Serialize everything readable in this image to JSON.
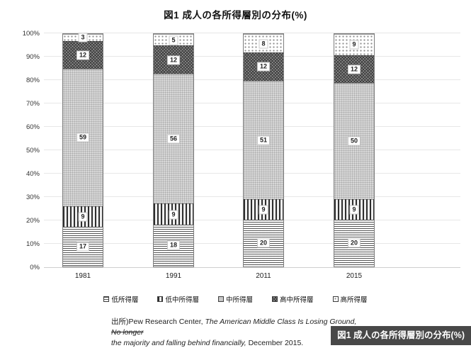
{
  "title": "図1 成人の各所得層別の分布(%)",
  "chart_data": {
    "type": "bar",
    "stacked": true,
    "percent_stacked": true,
    "title": "図1 成人の各所得層別の分布(%)",
    "categories": [
      "1981",
      "1991",
      "2011",
      "2015"
    ],
    "series": [
      {
        "name": "低所得層",
        "slug": "low-income",
        "pattern": "h-lines",
        "values": [
          17,
          18,
          20,
          20
        ]
      },
      {
        "name": "低中所得層",
        "slug": "lower-middle-income",
        "pattern": "v-lines",
        "values": [
          9,
          9,
          9,
          9
        ]
      },
      {
        "name": "中所得層",
        "slug": "middle-income",
        "pattern": "fine-check",
        "values": [
          59,
          56,
          51,
          50
        ]
      },
      {
        "name": "高中所得層",
        "slug": "upper-middle-income",
        "pattern": "cross-hatch",
        "values": [
          12,
          12,
          12,
          12
        ]
      },
      {
        "name": "高所得層",
        "slug": "high-income",
        "pattern": "sparse-dots",
        "values": [
          3,
          5,
          8,
          9
        ]
      }
    ],
    "y_axis": {
      "min": 0,
      "max": 100,
      "ticks": [
        "0%",
        "10%",
        "20%",
        "30%",
        "40%",
        "50%",
        "60%",
        "70%",
        "80%",
        "90%",
        "100%"
      ],
      "grid": true
    },
    "legend_position": "bottom",
    "colors": {
      "gridline": "#e7e7e7",
      "bar_border": "#7d7d7d",
      "label_box_bg": "#ffffff"
    }
  },
  "source": {
    "prefix": "出所)Pew Research Center,",
    "title_italic_line1": "The American Middle Class Is Losing Ground,",
    "title_struck": "No longer",
    "title_italic_line2": "the majority and falling behind financially,",
    "suffix": "December 2015."
  },
  "caption_overlay": {
    "text": "図1 成人の各所得層別の分布(%)",
    "bg": "#282828",
    "fg": "#ffffff"
  }
}
